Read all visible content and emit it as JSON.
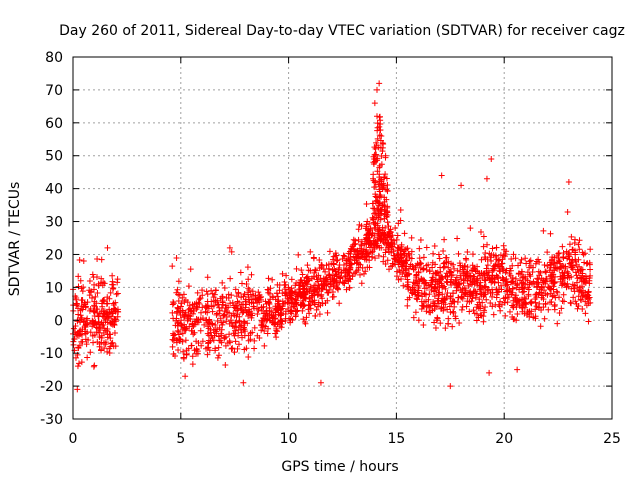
{
  "chart_data": {
    "type": "scatter",
    "title": "Day 260 of 2011, Sidereal Day-to-day VTEC variation (SDTVAR) for receiver cagz",
    "xlabel": "GPS time / hours",
    "ylabel": "SDTVAR / TECUs",
    "xlim": [
      0,
      25
    ],
    "ylim": [
      -30,
      80
    ],
    "xticks": [
      0,
      5,
      10,
      15,
      20,
      25
    ],
    "yticks": [
      -30,
      -20,
      -10,
      0,
      10,
      20,
      30,
      40,
      50,
      60,
      70,
      80
    ],
    "grid": true,
    "marker": "+",
    "color": "#ff0000",
    "series": [
      {
        "name": "SDTVAR",
        "trend": [
          {
            "x": 0.0,
            "y": -1
          },
          {
            "x": 0.5,
            "y": 0
          },
          {
            "x": 1.0,
            "y": 1
          },
          {
            "x": 1.5,
            "y": 2
          },
          {
            "x": 2.0,
            "y": 3
          },
          {
            "x": 4.7,
            "y": 0
          },
          {
            "x": 5.5,
            "y": 1
          },
          {
            "x": 6.5,
            "y": 0
          },
          {
            "x": 7.5,
            "y": 0
          },
          {
            "x": 8.5,
            "y": 2
          },
          {
            "x": 9.5,
            "y": 4
          },
          {
            "x": 10.5,
            "y": 7
          },
          {
            "x": 11.5,
            "y": 10
          },
          {
            "x": 12.5,
            "y": 15
          },
          {
            "x": 13.5,
            "y": 22
          },
          {
            "x": 14.2,
            "y": 27
          },
          {
            "x": 15.0,
            "y": 20
          },
          {
            "x": 16.0,
            "y": 12
          },
          {
            "x": 17.0,
            "y": 9
          },
          {
            "x": 18.0,
            "y": 10
          },
          {
            "x": 19.0,
            "y": 11
          },
          {
            "x": 19.5,
            "y": 14
          },
          {
            "x": 20.5,
            "y": 10
          },
          {
            "x": 21.5,
            "y": 10
          },
          {
            "x": 22.5,
            "y": 14
          },
          {
            "x": 23.0,
            "y": 15
          },
          {
            "x": 24.0,
            "y": 11
          }
        ],
        "gaps": [
          [
            2.1,
            4.6
          ]
        ],
        "notable_points": [
          {
            "x": 14.2,
            "y": 72
          },
          {
            "x": 14.1,
            "y": 70
          },
          {
            "x": 14.0,
            "y": 66
          },
          {
            "x": 14.1,
            "y": 62
          },
          {
            "x": 14.3,
            "y": 56
          },
          {
            "x": 14.5,
            "y": 50
          },
          {
            "x": 19.4,
            "y": 49
          },
          {
            "x": 17.1,
            "y": 44
          },
          {
            "x": 19.2,
            "y": 43
          },
          {
            "x": 23.0,
            "y": 42
          },
          {
            "x": 18.0,
            "y": 41
          },
          {
            "x": 1.6,
            "y": 22
          },
          {
            "x": 0.5,
            "y": 18
          },
          {
            "x": 0.2,
            "y": -21
          },
          {
            "x": 17.5,
            "y": -20
          },
          {
            "x": 7.9,
            "y": -19
          },
          {
            "x": 11.5,
            "y": -19
          },
          {
            "x": 19.3,
            "y": -16
          },
          {
            "x": 20.6,
            "y": -15
          },
          {
            "x": 5.2,
            "y": -17
          }
        ]
      }
    ]
  }
}
